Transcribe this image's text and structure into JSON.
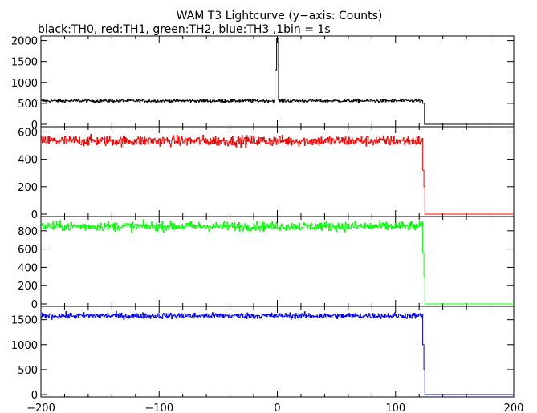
{
  "chart_data": {
    "type": "line",
    "title": "WAM T3 Lightcurve (y−axis: Counts)",
    "subtitle": "black:TH0, red:TH1, green:TH2, blue:TH3 ,1bin = 1s",
    "xlim": [
      -200,
      200
    ],
    "xticks": [
      -200,
      -100,
      0,
      100,
      200
    ],
    "xtick_labels": [
      "−200",
      "−100",
      "0",
      "100",
      "200"
    ],
    "grid": false,
    "panels": [
      {
        "name": "TH0",
        "color": "#000000",
        "ylim": [
          0,
          2050
        ],
        "yticks": [
          0,
          500,
          1000,
          1500,
          2000
        ],
        "ytick_labels": [
          "0",
          "500",
          "1000",
          "1500",
          "2000"
        ],
        "segments": [
          {
            "x": [
              -200,
              -2
            ],
            "level": 560,
            "noise": 45
          },
          {
            "x": [
              -2,
              -0.6
            ],
            "level": 1300,
            "noise": 0
          },
          {
            "x": [
              -0.6,
              1
            ],
            "level": 2050,
            "noise": 0
          },
          {
            "x": [
              1,
              123
            ],
            "level": 560,
            "noise": 45
          },
          {
            "x": [
              123,
              124.5
            ],
            "level": 500,
            "noise": 0
          },
          {
            "x": [
              124.5,
              200
            ],
            "level": 0,
            "noise": 0
          }
        ]
      },
      {
        "name": "TH1",
        "color": "#ff0000",
        "ylim": [
          0,
          620
        ],
        "yticks": [
          0,
          200,
          400,
          600
        ],
        "ytick_labels": [
          "0",
          "200",
          "400",
          "600"
        ],
        "segments": [
          {
            "x": [
              -200,
              123
            ],
            "level": 535,
            "noise": 45
          },
          {
            "x": [
              123,
              124
            ],
            "level": 320,
            "noise": 0
          },
          {
            "x": [
              124,
              124.8
            ],
            "level": 200,
            "noise": 0
          },
          {
            "x": [
              124.8,
              200
            ],
            "level": 0,
            "noise": 0
          }
        ]
      },
      {
        "name": "TH2",
        "color": "#00ff00",
        "ylim": [
          0,
          930
        ],
        "yticks": [
          0,
          200,
          400,
          600,
          800
        ],
        "ytick_labels": [
          "0",
          "200",
          "400",
          "600",
          "800"
        ],
        "segments": [
          {
            "x": [
              -200,
              123
            ],
            "level": 850,
            "noise": 60
          },
          {
            "x": [
              123,
              124
            ],
            "level": 560,
            "noise": 0
          },
          {
            "x": [
              124,
              124.8
            ],
            "level": 300,
            "noise": 0
          },
          {
            "x": [
              124.8,
              200
            ],
            "level": 0,
            "noise": 0
          }
        ]
      },
      {
        "name": "TH3",
        "color": "#0000ff",
        "ylim": [
          0,
          1720
        ],
        "yticks": [
          0,
          500,
          1000,
          1500
        ],
        "ytick_labels": [
          "0",
          "500",
          "1000",
          "1500"
        ],
        "segments": [
          {
            "x": [
              -200,
              123
            ],
            "level": 1580,
            "noise": 70
          },
          {
            "x": [
              123,
              124
            ],
            "level": 1000,
            "noise": 0
          },
          {
            "x": [
              124,
              124.8
            ],
            "level": 500,
            "noise": 0
          },
          {
            "x": [
              124.8,
              200
            ],
            "level": 0,
            "noise": 0
          }
        ]
      }
    ]
  }
}
